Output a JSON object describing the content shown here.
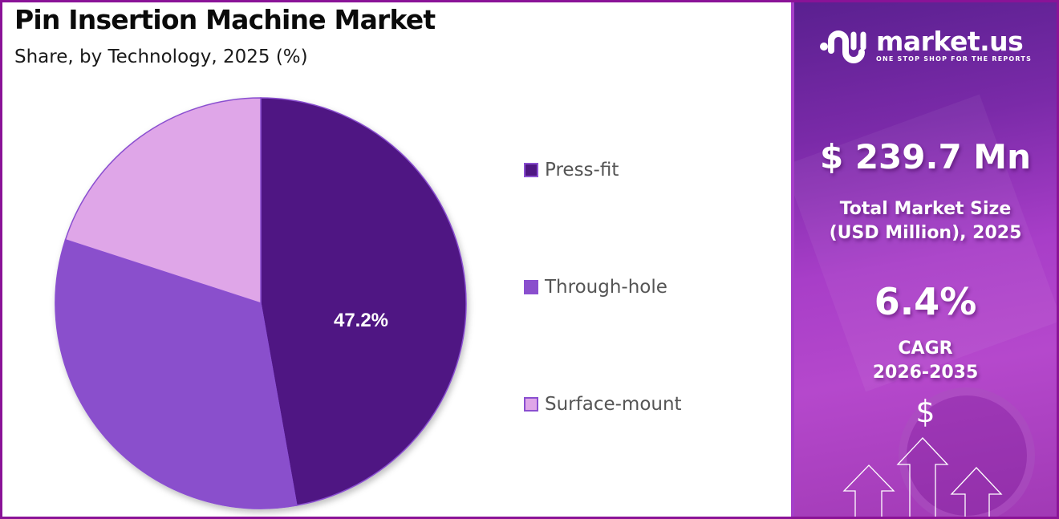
{
  "header": {
    "title": "Pin Insertion Machine Market",
    "subtitle": "Share, by Technology, 2025 (%)"
  },
  "chart_data": {
    "type": "pie",
    "title": "Pin Insertion Machine Market",
    "subtitle": "Share, by Technology, 2025 (%)",
    "categories": [
      "Press-fit",
      "Through-hole",
      "Surface-mount"
    ],
    "values": [
      47.2,
      32.8,
      20.0
    ],
    "colors": [
      "#4f1783",
      "#8a4fcc",
      "#dfa6e8"
    ],
    "data_labels": [
      "47.2%",
      "",
      ""
    ],
    "start_angle": "12 o'clock, clockwise",
    "legend_position": "right"
  },
  "legend": {
    "items": [
      {
        "label": "Press-fit",
        "color": "#4f1783"
      },
      {
        "label": "Through-hole",
        "color": "#8a4fcc"
      },
      {
        "label": "Surface-mount",
        "color": "#dfa6e8"
      }
    ]
  },
  "pie": {
    "label_main": "47.2%"
  },
  "side_panel": {
    "logo": {
      "name": "market.us",
      "tagline": "ONE STOP SHOP FOR THE REPORTS"
    },
    "market_size": {
      "value": "$ 239.7 Mn",
      "label_line1": "Total Market Size",
      "label_line2": "(USD Million), 2025"
    },
    "cagr": {
      "value": "6.4%",
      "label_line1": "CAGR",
      "label_line2": "2026-2035"
    },
    "currency_symbol": "$",
    "colors": {
      "frame": "#8a1397",
      "panel_top": "#5a2090",
      "panel_mid": "#b548cc"
    }
  }
}
